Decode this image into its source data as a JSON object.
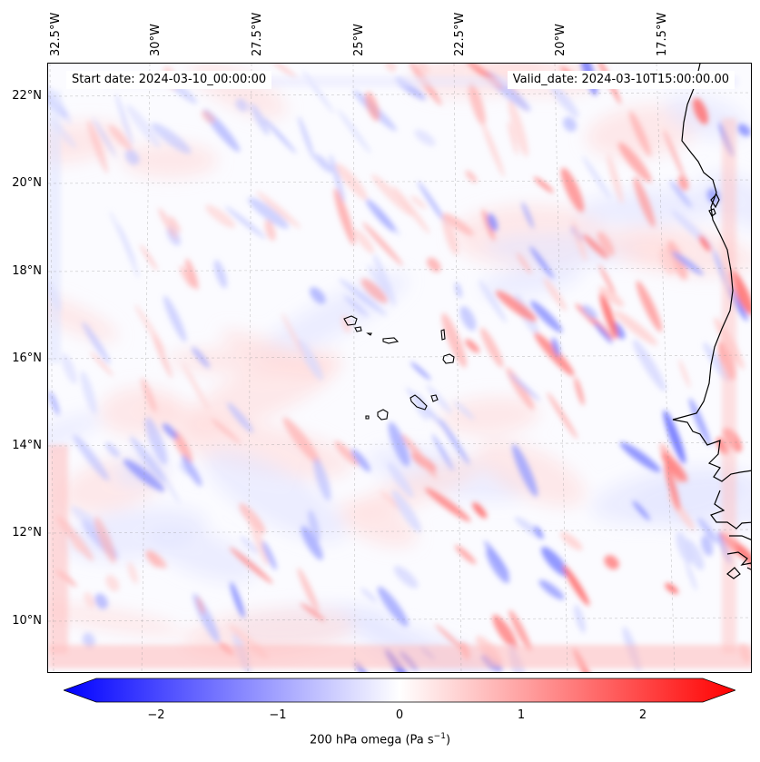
{
  "map": {
    "type": "contour-map",
    "variable": "200 hPa omega",
    "units": "Pa s^-1",
    "region": {
      "lon_range": [
        -33.0,
        -15.2
      ],
      "lat_range": [
        8.9,
        22.8
      ]
    },
    "start_date_text": "Start date: 2024-03-10_00:00:00",
    "valid_date_text": "Valid_date: 2024-03-10T15:00:00.00",
    "longitude_labels": [
      "32.5°W",
      "30°W",
      "27.5°W",
      "25°W",
      "22.5°W",
      "20°W",
      "17.5°W"
    ],
    "latitude_labels": [
      "22°N",
      "20°N",
      "18°N",
      "16°N",
      "14°N",
      "12°N",
      "10°N"
    ],
    "gridlines": true,
    "coastline_color": "#000000"
  },
  "colorbar": {
    "label_main": "200 hPa omega (Pa s",
    "label_exp": "−1",
    "label_close": ")",
    "ticks": [
      "−2",
      "−1",
      "0",
      "1",
      "2"
    ],
    "vmin": -2.5,
    "vmax": 2.5,
    "extend": "both",
    "colormap": "bwr",
    "low_color": "#0000ff",
    "mid_color": "#ffffff",
    "high_color": "#ff0000"
  }
}
